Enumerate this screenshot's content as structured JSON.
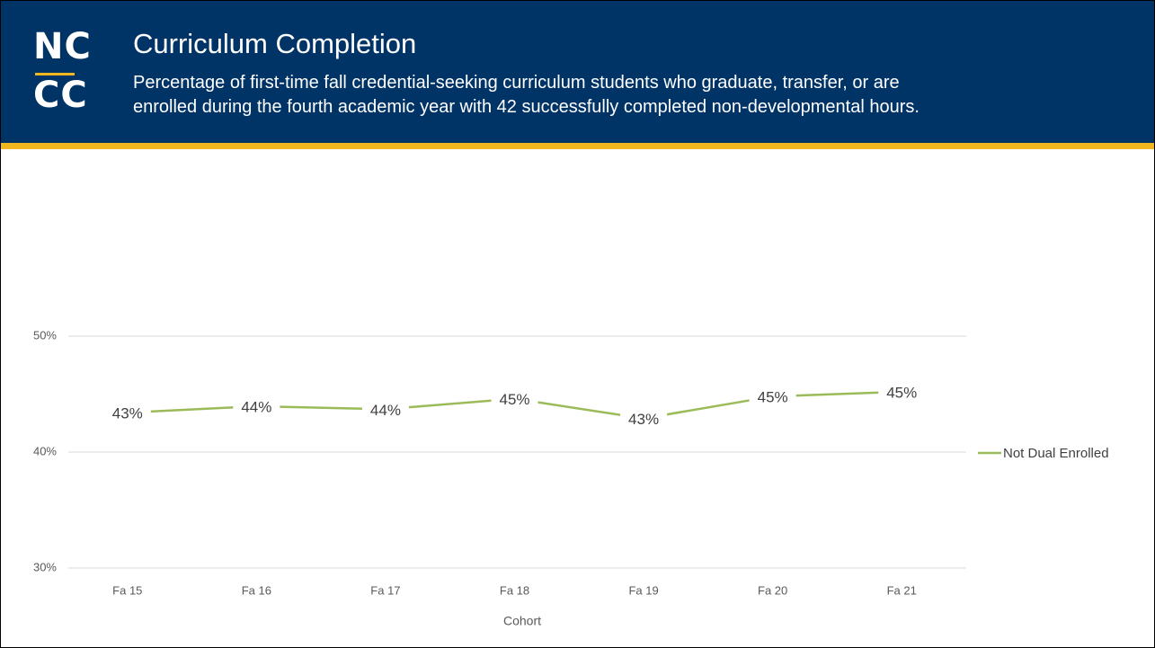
{
  "header": {
    "logo": [
      "NC",
      "CC"
    ],
    "title": "Curriculum Completion",
    "subtitle": [
      "Percentage of first-time fall credential-seeking curriculum students who graduate, transfer, or are",
      "enrolled during the fourth academic year with 42 successfully completed non-developmental hours."
    ]
  },
  "chart_data": {
    "type": "line",
    "x_label": "Cohort",
    "categories": [
      "Fa 15",
      "Fa 16",
      "Fa 17",
      "Fa 18",
      "Fa 19",
      "Fa 20",
      "Fa 21"
    ],
    "series": [
      {
        "name": "Not Dual Enrolled",
        "color": "#9bbb59",
        "values": [
          43.4,
          43.95,
          43.7,
          44.6,
          42.9,
          44.8,
          45.2
        ],
        "value_labels": [
          "43%",
          "44%",
          "44%",
          "45%",
          "43%",
          "45%",
          "45%"
        ]
      }
    ],
    "ylim": [
      30,
      50
    ],
    "yticks": [
      {
        "value": 30,
        "label": "30%"
      },
      {
        "value": 40,
        "label": "40%"
      },
      {
        "value": 50,
        "label": "50%"
      }
    ],
    "grid": true,
    "legend": "right"
  }
}
